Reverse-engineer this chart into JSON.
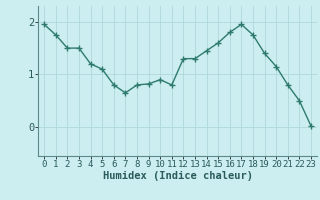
{
  "x": [
    0,
    1,
    2,
    3,
    4,
    5,
    6,
    7,
    8,
    9,
    10,
    11,
    12,
    13,
    14,
    15,
    16,
    17,
    18,
    19,
    20,
    21,
    22,
    23
  ],
  "y": [
    1.95,
    1.75,
    1.5,
    1.5,
    1.2,
    1.1,
    0.8,
    0.65,
    0.8,
    0.82,
    0.9,
    0.8,
    1.3,
    1.3,
    1.45,
    1.6,
    1.8,
    1.95,
    1.75,
    1.4,
    1.15,
    0.8,
    0.5,
    0.02
  ],
  "line_color": "#2e7b6e",
  "marker_color": "#2e7b6e",
  "bg_color": "#cdeef0",
  "grid_color": "#aed8da",
  "xlabel": "Humidex (Indice chaleur)",
  "xlim": [
    -0.5,
    23.5
  ],
  "ylim": [
    -0.55,
    2.3
  ],
  "yticks": [
    0,
    1,
    2
  ],
  "xticks": [
    0,
    1,
    2,
    3,
    4,
    5,
    6,
    7,
    8,
    9,
    10,
    11,
    12,
    13,
    14,
    15,
    16,
    17,
    18,
    19,
    20,
    21,
    22,
    23
  ],
  "xlabel_fontsize": 7.5,
  "tick_fontsize": 6.5,
  "line_width": 1.0,
  "marker_size": 4
}
